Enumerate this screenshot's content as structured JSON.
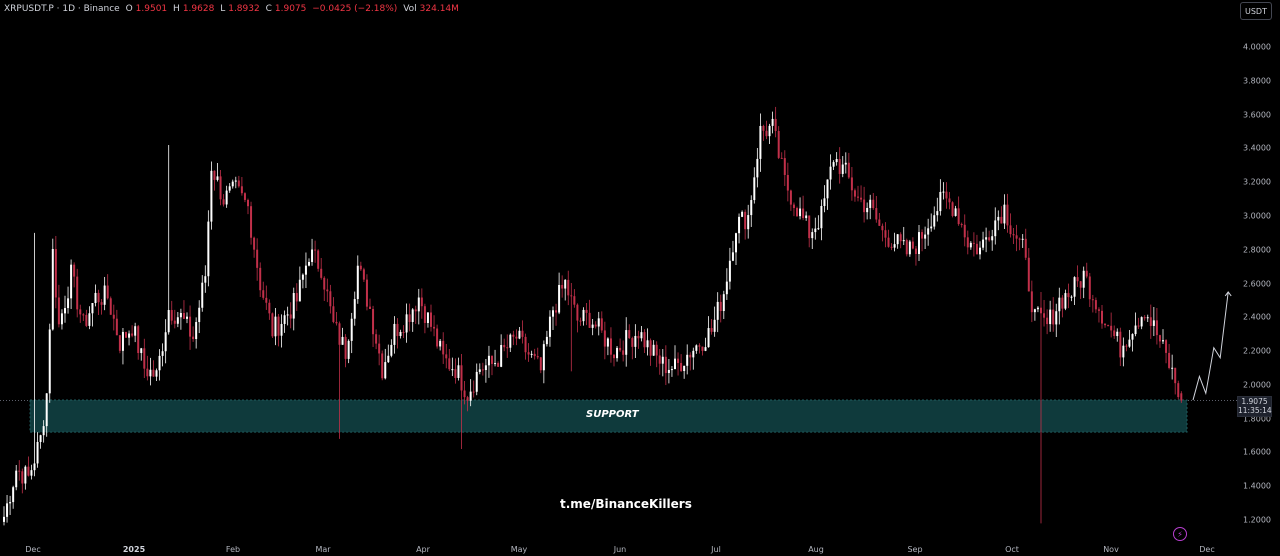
{
  "header": {
    "symbol": "XRPUSDT.P · 1D · Binance",
    "o_label": "O",
    "o_val": "1.9501",
    "h_label": "H",
    "h_val": "1.9628",
    "l_label": "L",
    "l_val": "1.8932",
    "c_label": "C",
    "c_val": "1.9075",
    "change": "−0.0425 (−2.18%)",
    "vol_label": "Vol",
    "vol_val": "324.14M"
  },
  "currency_button": "USDT",
  "current_price": {
    "value": "1.9075",
    "countdown": "11:35:14"
  },
  "support_label": "SUPPORT",
  "watermark": "t.me/BinanceKillers",
  "colors": {
    "up": "#ffffff",
    "down": "#c2304a",
    "support_zone": "#0f3a3c",
    "support_border": "#1f5c5e",
    "background": "#000000"
  },
  "chart_data": {
    "type": "candlestick",
    "symbol": "XRPUSDT.P",
    "interval": "1D",
    "exchange": "Binance",
    "yticks": [
      "4.0000",
      "3.8000",
      "3.6000",
      "3.4000",
      "3.2000",
      "3.0000",
      "2.8000",
      "2.6000",
      "2.4000",
      "2.2000",
      "2.0000",
      "1.8000",
      "1.6000",
      "1.4000",
      "1.2000"
    ],
    "xticks": [
      "Dec",
      "2025",
      "Feb",
      "Mar",
      "Apr",
      "May",
      "Jun",
      "Jul",
      "Aug",
      "Sep",
      "Oct",
      "Nov",
      "Dec"
    ],
    "ylim": [
      1.15,
      4.05
    ],
    "support_zone": [
      1.72,
      1.91
    ],
    "projection_path": [
      [
        0,
        1.91
      ],
      [
        4,
        2.05
      ],
      [
        8,
        1.95
      ],
      [
        13,
        2.22
      ],
      [
        17,
        2.16
      ],
      [
        22,
        2.55
      ]
    ],
    "anchors": [
      [
        0,
        1.22
      ],
      [
        4,
        1.5
      ],
      [
        8,
        1.45
      ],
      [
        12,
        1.68
      ],
      [
        14,
        1.95
      ],
      [
        16,
        2.78
      ],
      [
        18,
        2.35
      ],
      [
        22,
        2.65
      ],
      [
        26,
        2.35
      ],
      [
        30,
        2.52
      ],
      [
        34,
        2.52
      ],
      [
        38,
        2.25
      ],
      [
        42,
        2.35
      ],
      [
        46,
        2.1
      ],
      [
        50,
        2.05
      ],
      [
        54,
        2.45
      ],
      [
        58,
        2.4
      ],
      [
        62,
        2.28
      ],
      [
        66,
        2.65
      ],
      [
        68,
        3.3
      ],
      [
        72,
        3.1
      ],
      [
        76,
        3.15
      ],
      [
        80,
        3.05
      ],
      [
        84,
        2.6
      ],
      [
        88,
        2.32
      ],
      [
        92,
        2.4
      ],
      [
        96,
        2.5
      ],
      [
        100,
        2.78
      ],
      [
        104,
        2.7
      ],
      [
        108,
        2.35
      ],
      [
        112,
        2.2
      ],
      [
        116,
        2.7
      ],
      [
        120,
        2.45
      ],
      [
        124,
        2.1
      ],
      [
        128,
        2.32
      ],
      [
        132,
        2.4
      ],
      [
        136,
        2.52
      ],
      [
        140,
        2.35
      ],
      [
        144,
        2.15
      ],
      [
        148,
        2.1
      ],
      [
        152,
        1.95
      ],
      [
        156,
        2.1
      ],
      [
        160,
        2.12
      ],
      [
        164,
        2.2
      ],
      [
        168,
        2.28
      ],
      [
        172,
        2.18
      ],
      [
        176,
        2.08
      ],
      [
        180,
        2.45
      ],
      [
        184,
        2.6
      ],
      [
        188,
        2.38
      ],
      [
        192,
        2.4
      ],
      [
        196,
        2.3
      ],
      [
        200,
        2.2
      ],
      [
        204,
        2.26
      ],
      [
        208,
        2.32
      ],
      [
        212,
        2.2
      ],
      [
        216,
        2.12
      ],
      [
        220,
        2.1
      ],
      [
        224,
        2.18
      ],
      [
        228,
        2.25
      ],
      [
        232,
        2.32
      ],
      [
        236,
        2.55
      ],
      [
        240,
        2.95
      ],
      [
        244,
        3.0
      ],
      [
        248,
        3.5
      ],
      [
        252,
        3.52
      ],
      [
        256,
        3.2
      ],
      [
        260,
        3.05
      ],
      [
        264,
        2.9
      ],
      [
        268,
        3.0
      ],
      [
        272,
        3.35
      ],
      [
        276,
        3.25
      ],
      [
        280,
        3.1
      ],
      [
        284,
        3.05
      ],
      [
        288,
        2.9
      ],
      [
        292,
        2.85
      ],
      [
        296,
        2.78
      ],
      [
        300,
        2.85
      ],
      [
        304,
        3.0
      ],
      [
        308,
        3.1
      ],
      [
        312,
        3.05
      ],
      [
        316,
        2.85
      ],
      [
        320,
        2.8
      ],
      [
        324,
        2.95
      ],
      [
        328,
        3.05
      ],
      [
        330,
        2.95
      ],
      [
        334,
        2.8
      ],
      [
        338,
        2.4
      ],
      [
        342,
        2.35
      ],
      [
        346,
        2.5
      ],
      [
        350,
        2.55
      ],
      [
        354,
        2.65
      ],
      [
        358,
        2.5
      ],
      [
        362,
        2.35
      ],
      [
        366,
        2.22
      ],
      [
        370,
        2.35
      ],
      [
        374,
        2.45
      ],
      [
        378,
        2.3
      ],
      [
        382,
        2.12
      ],
      [
        386,
        1.91
      ]
    ],
    "spikes": [
      [
        54,
        2.45,
        3.42,
        2.34
      ],
      [
        110,
        2.22,
        2.32,
        1.68
      ],
      [
        150,
        2.0,
        2.05,
        1.62
      ],
      [
        186,
        2.45,
        2.55,
        2.08
      ],
      [
        340,
        2.42,
        2.55,
        1.18
      ],
      [
        10,
        2.4,
        2.9,
        2.2
      ]
    ]
  }
}
